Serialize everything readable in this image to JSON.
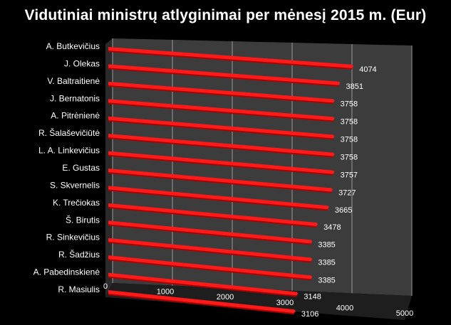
{
  "chart_data": {
    "type": "bar",
    "orientation": "horizontal",
    "style": "3d-perspective",
    "title": "Vidutiniai  ministrų  atlyginimai  per mėnesį 2015 m. (Eur)",
    "xlabel": "",
    "ylabel": "",
    "xlim": [
      0,
      5000
    ],
    "xticks": [
      "0",
      "1000",
      "2000",
      "3000",
      "4000",
      "5000"
    ],
    "grid": true,
    "legend": "none",
    "categories": [
      "A. Butkevičius",
      "J. Olekas",
      "V. Baltraitienė",
      "J. Bernatonis",
      "A. Pitrėnienė",
      "R. Šalaševičiūtė",
      "L. A. Linkevičius",
      "E. Gustas",
      "S. Skvernelis",
      "K. Trečiokas",
      "Š. Birutis",
      "R. Sinkevičius",
      "R. Šadžius",
      "A. Pabedinskienė",
      "R. Masiulis"
    ],
    "values": [
      4074,
      3851,
      3758,
      3758,
      3758,
      3758,
      3757,
      3727,
      3665,
      3478,
      3385,
      3385,
      3385,
      3148,
      3106
    ],
    "value_labels": [
      "4074",
      "3851",
      "3758",
      "3758",
      "3758",
      "3758",
      "3757",
      "3727",
      "3665",
      "3478",
      "3385",
      "3385",
      "3385",
      "3148",
      "3106"
    ],
    "colors": {
      "bar": "#ff1a1a",
      "bar_dark": "#b00000",
      "plot_back": "#3c3c3c",
      "plot_floor": "#1e1e1e",
      "grid": "#9a9a9a",
      "text": "#ffffff"
    }
  }
}
